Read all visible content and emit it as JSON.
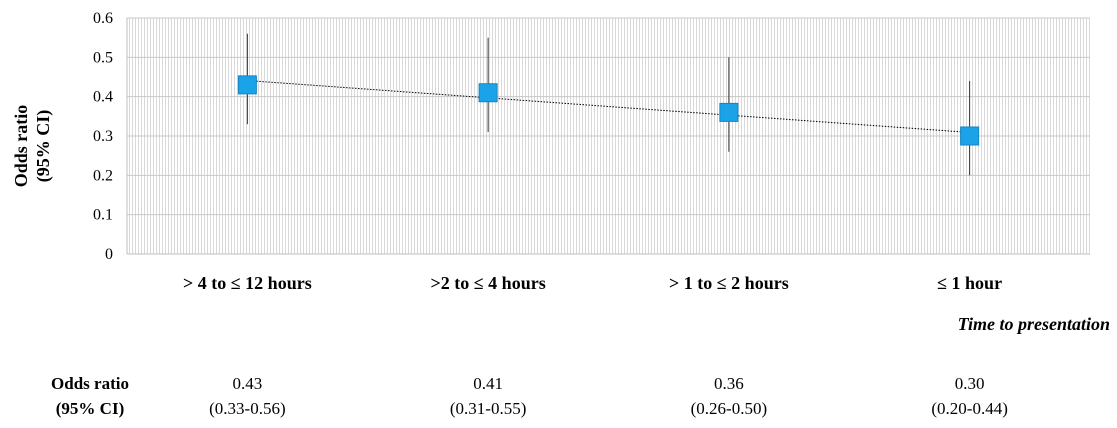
{
  "chart_data": {
    "type": "scatter",
    "title": "",
    "ylabel_lines": [
      "Odds ratio",
      "(95% CI)"
    ],
    "xlabel": "Time to presentation",
    "ylim": [
      0,
      0.6
    ],
    "yticks": [
      "0",
      "0.1",
      "0.2",
      "0.3",
      "0.4",
      "0.5",
      "0.6"
    ],
    "categories": [
      "> 4 to ≤ 12  hours",
      ">2 to ≤ 4  hours",
      "> 1 to ≤ 2 hours",
      "≤ 1 hour"
    ],
    "series": [
      {
        "values": [
          0.43,
          0.41,
          0.36,
          0.3
        ],
        "ci_low": [
          0.33,
          0.31,
          0.26,
          0.2
        ],
        "ci_high": [
          0.56,
          0.55,
          0.5,
          0.44
        ]
      }
    ],
    "trendline": true,
    "grid": true,
    "marker_color": "#1aa3e8"
  },
  "table": {
    "row_header_lines": [
      "Odds ratio",
      "(95% CI)"
    ],
    "values": [
      "0.43",
      "0.41",
      "0.36",
      "0.30"
    ],
    "intervals": [
      "(0.33-0.56)",
      "(0.31-0.55)",
      "(0.26-0.50)",
      "(0.20-0.44)"
    ]
  }
}
